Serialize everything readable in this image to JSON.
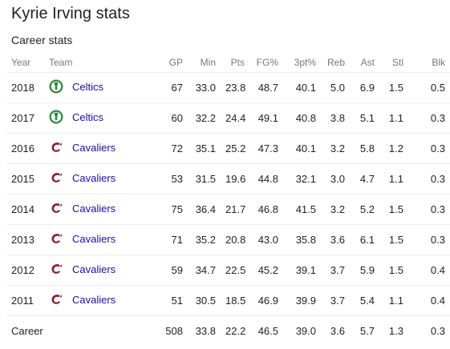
{
  "page": {
    "title": "Kyrie Irving stats",
    "subtitle": "Career stats"
  },
  "table": {
    "headers": {
      "year": "Year",
      "team": "Team",
      "gp": "GP",
      "min": "Min",
      "pts": "Pts",
      "fg": "FG%",
      "tpt": "3pt%",
      "reb": "Reb",
      "ast": "Ast",
      "stl": "Stl",
      "blk": "Blk"
    },
    "rows": [
      {
        "year": "2018",
        "team": "Celtics",
        "logo": "celtics-logo-icon",
        "gp": "67",
        "min": "33.0",
        "pts": "23.8",
        "fg": "48.7",
        "tpt": "40.1",
        "reb": "5.0",
        "ast": "6.9",
        "stl": "1.5",
        "blk": "0.5"
      },
      {
        "year": "2017",
        "team": "Celtics",
        "logo": "celtics-logo-icon",
        "gp": "60",
        "min": "32.2",
        "pts": "24.4",
        "fg": "49.1",
        "tpt": "40.8",
        "reb": "3.8",
        "ast": "5.1",
        "stl": "1.1",
        "blk": "0.3"
      },
      {
        "year": "2016",
        "team": "Cavaliers",
        "logo": "cavaliers-logo-icon",
        "gp": "72",
        "min": "35.1",
        "pts": "25.2",
        "fg": "47.3",
        "tpt": "40.1",
        "reb": "3.2",
        "ast": "5.8",
        "stl": "1.2",
        "blk": "0.3"
      },
      {
        "year": "2015",
        "team": "Cavaliers",
        "logo": "cavaliers-logo-icon",
        "gp": "53",
        "min": "31.5",
        "pts": "19.6",
        "fg": "44.8",
        "tpt": "32.1",
        "reb": "3.0",
        "ast": "4.7",
        "stl": "1.1",
        "blk": "0.3"
      },
      {
        "year": "2014",
        "team": "Cavaliers",
        "logo": "cavaliers-logo-icon",
        "gp": "75",
        "min": "36.4",
        "pts": "21.7",
        "fg": "46.8",
        "tpt": "41.5",
        "reb": "3.2",
        "ast": "5.2",
        "stl": "1.5",
        "blk": "0.3"
      },
      {
        "year": "2013",
        "team": "Cavaliers",
        "logo": "cavaliers-logo-icon",
        "gp": "71",
        "min": "35.2",
        "pts": "20.8",
        "fg": "43.0",
        "tpt": "35.8",
        "reb": "3.6",
        "ast": "6.1",
        "stl": "1.5",
        "blk": "0.3"
      },
      {
        "year": "2012",
        "team": "Cavaliers",
        "logo": "cavaliers-logo-icon",
        "gp": "59",
        "min": "34.7",
        "pts": "22.5",
        "fg": "45.2",
        "tpt": "39.1",
        "reb": "3.7",
        "ast": "5.9",
        "stl": "1.5",
        "blk": "0.4"
      },
      {
        "year": "2011",
        "team": "Cavaliers",
        "logo": "cavaliers-logo-icon",
        "gp": "51",
        "min": "30.5",
        "pts": "18.5",
        "fg": "46.9",
        "tpt": "39.9",
        "reb": "3.7",
        "ast": "5.4",
        "stl": "1.1",
        "blk": "0.4"
      }
    ],
    "career": {
      "label": "Career",
      "gp": "508",
      "min": "33.8",
      "pts": "22.2",
      "fg": "46.5",
      "tpt": "39.0",
      "reb": "3.6",
      "ast": "5.7",
      "stl": "1.3",
      "blk": "0.3"
    }
  },
  "colors": {
    "link": "#1a0dab",
    "header_text": "#777777",
    "celtics_green": "#2f8a3c",
    "cavaliers_wine": "#8a1c2e"
  }
}
